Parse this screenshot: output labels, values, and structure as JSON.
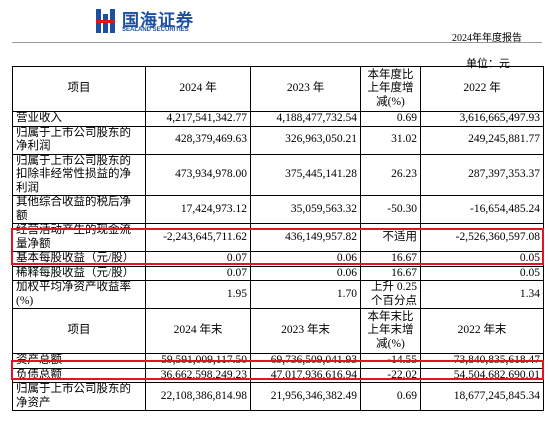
{
  "header": {
    "logo_text": "国海证券",
    "logo_subtitle": "SEALAND SECURITIES",
    "report_title": "2024年年度报告"
  },
  "unit": "单位：元",
  "table1": {
    "columns": [
      "项目",
      "2024 年",
      "2023 年",
      "本年度比上年度增减(%)",
      "2022 年"
    ],
    "rows": [
      [
        "营业收入",
        "4,217,541,342.77",
        "4,188,477,732.54",
        "0.69",
        "3,616,665,497.93"
      ],
      [
        "归属于上市公司股东的净利润",
        "428,379,469.63",
        "326,963,050.21",
        "31.02",
        "249,245,881.77"
      ],
      [
        "归属于上市公司股东的扣除非经常性损益的净利润",
        "473,934,978.00",
        "375,445,141.28",
        "26.23",
        "287,397,353.37"
      ],
      [
        "其他综合收益的税后净额",
        "17,424,973.12",
        "35,059,563.32",
        "-50.30",
        "-16,654,485.24"
      ],
      [
        "经营活动产生的现金流量净额",
        "-2,243,645,711.62",
        "436,149,957.82",
        "不适用",
        "-2,526,360,597.08"
      ],
      [
        "基本每股收益（元/股）",
        "0.07",
        "0.06",
        "16.67",
        "0.05"
      ],
      [
        "稀释每股收益（元/股）",
        "0.07",
        "0.06",
        "16.67",
        "0.05"
      ],
      [
        "加权平均净资产收益率(%)",
        "1.95",
        "1.70",
        "上升 0.25 个百分点",
        "1.34"
      ]
    ]
  },
  "table2": {
    "columns": [
      "项目",
      "2024 年末",
      "2023 年末",
      "本年末比上年末增减(%)",
      "2022 年末"
    ],
    "rows": [
      [
        "资产总额",
        "59,591,009,117.50",
        "69,736,509,041.93",
        "-14.55",
        "73,840,835,618.47"
      ],
      [
        "负债总额",
        "36,662,598,249.23",
        "47,017,936,616.94",
        "-22.02",
        "54,504,682,690.01"
      ],
      [
        "归属于上市公司股东的净资产",
        "22,108,386,814.98",
        "21,956,346,382.49",
        "0.69",
        "18,677,245,845.34"
      ]
    ]
  }
}
